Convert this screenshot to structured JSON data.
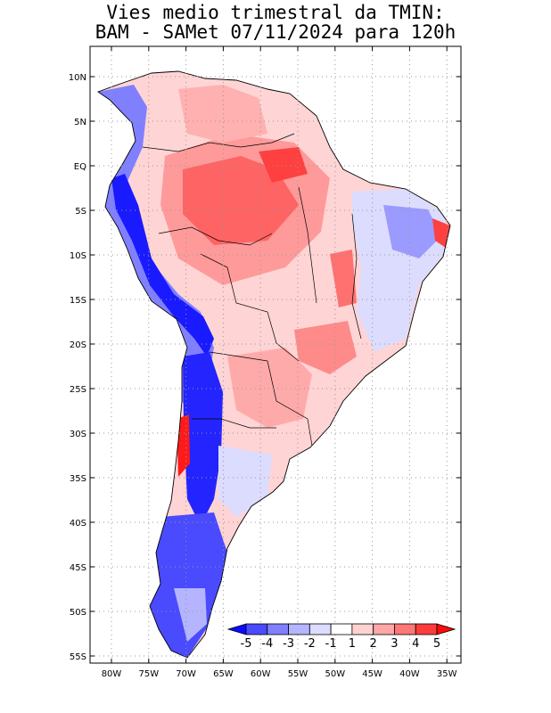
{
  "title": {
    "line1": "Vies medio trimestral da TMIN:",
    "line2": "BAM - SAMet 07/11/2024  para 120h"
  },
  "map": {
    "lat_ticks": [
      "10N",
      "5N",
      "EQ",
      "5S",
      "10S",
      "15S",
      "20S",
      "25S",
      "30S",
      "35S",
      "40S",
      "45S",
      "50S",
      "55S"
    ],
    "lon_ticks": [
      "80W",
      "75W",
      "70W",
      "65W",
      "60W",
      "55W",
      "50W",
      "45W",
      "40W",
      "35W"
    ],
    "lon_range": [
      -83,
      -34
    ],
    "lat_range": [
      -56,
      13
    ],
    "grid": "dotted"
  },
  "colorbar": {
    "labels": [
      "-5",
      "-4",
      "-3",
      "-2",
      "-1",
      "1",
      "2",
      "3",
      "4",
      "5"
    ],
    "colors": [
      "#0b0bff",
      "#4a4aff",
      "#8080ff",
      "#b4b4ff",
      "#dcdcff",
      "#ffffff",
      "#ffd2d2",
      "#ffa6a6",
      "#ff7676",
      "#ff3c3c",
      "#ff0a0a"
    ]
  }
}
